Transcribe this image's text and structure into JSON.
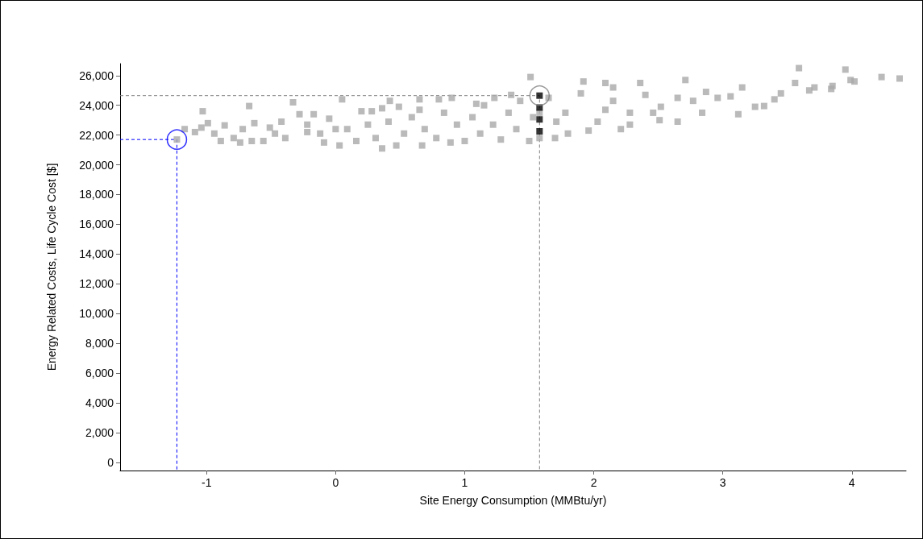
{
  "chart_data": {
    "type": "scatter",
    "xlabel": "Site Energy Consumption (MMBtu/yr)",
    "ylabel": "Energy Related Costs, Life Cycle Cost [$]",
    "xlim": [
      -1.67,
      4.42
    ],
    "ylim": [
      -550,
      26800
    ],
    "xticks": [
      -1,
      0,
      1,
      2,
      3,
      4
    ],
    "yticks": [
      0,
      {
        "value": 2000,
        "label": "2,000"
      },
      {
        "value": 4000,
        "label": "4,000"
      },
      {
        "value": 6000,
        "label": "6,000"
      },
      {
        "value": 8000,
        "label": "8,000"
      },
      {
        "value": 10000,
        "label": "10,000"
      },
      {
        "value": 12000,
        "label": "12,000"
      },
      {
        "value": 14000,
        "label": "14,000"
      },
      {
        "value": 16000,
        "label": "16,000"
      },
      {
        "value": 18000,
        "label": "18,000"
      },
      {
        "value": 20000,
        "label": "20,000"
      },
      {
        "value": 22000,
        "label": "22,000"
      },
      {
        "value": 24000,
        "label": "24,000"
      },
      {
        "value": 26000,
        "label": "26,000"
      }
    ],
    "grid": false,
    "series": [
      {
        "marker": "square",
        "color": "#a9a9a9",
        "x": [
          -1.23,
          -1.17,
          -1.03,
          -1.09,
          -0.99,
          -1.04,
          -0.89,
          -0.86,
          -0.79,
          -0.67,
          -0.74,
          -0.65,
          -0.63,
          -0.56,
          -0.51,
          -0.33,
          -0.42,
          -0.39,
          -0.28,
          -0.22,
          -0.17,
          0.05,
          -0.05,
          -0.09,
          0.2,
          0.28,
          0.36,
          0.42,
          0.49,
          0.65,
          0.8,
          0.9,
          0.36,
          0.47,
          0.67,
          0.89,
          1.23,
          1.36,
          0.09,
          0.16,
          0.25,
          0.31,
          0.41,
          0.53,
          0.59,
          0.69,
          0.78,
          0.84,
          0.94,
          1.0,
          1.06,
          1.12,
          1.15,
          1.22,
          1.28,
          1.34,
          1.4,
          1.43,
          1.5,
          1.53,
          -0.22,
          -0.12,
          0.0,
          0.03,
          -0.47,
          -0.72,
          -0.94,
          0.65,
          1.09,
          1.58,
          1.58,
          1.51,
          1.92,
          2.09,
          2.15,
          2.36,
          2.71,
          3.15,
          3.59,
          3.95,
          3.99,
          4.23,
          4.37,
          3.56,
          3.67,
          3.85,
          3.84,
          3.12,
          3.45,
          3.32,
          3.25,
          3.06,
          2.87,
          2.84,
          2.65,
          2.51,
          2.21,
          1.96,
          1.8,
          1.7,
          1.65,
          1.78,
          1.9,
          2.03,
          2.15,
          2.28,
          2.4,
          2.52,
          2.65,
          2.77,
          2.96,
          3.4,
          3.71,
          4.02,
          1.71,
          2.09,
          2.28,
          2.46
        ],
        "values": [
          21700,
          22400,
          23600,
          22200,
          22800,
          22500,
          21600,
          22650,
          21800,
          23950,
          21500,
          21600,
          22800,
          21600,
          22500,
          24200,
          22900,
          21800,
          23400,
          22200,
          23400,
          24400,
          23100,
          21500,
          23600,
          23600,
          23800,
          24300,
          23900,
          24400,
          24400,
          24500,
          21100,
          21300,
          21300,
          21500,
          24500,
          24700,
          22400,
          21600,
          22700,
          21800,
          22900,
          22100,
          23200,
          22400,
          21800,
          23500,
          22700,
          21600,
          23200,
          22100,
          24000,
          22700,
          21700,
          23500,
          22400,
          24300,
          21600,
          23200,
          22700,
          22100,
          22400,
          21300,
          22100,
          22400,
          22100,
          23700,
          24100,
          21800,
          23500,
          25900,
          25600,
          25500,
          25200,
          25500,
          25700,
          25200,
          26500,
          26400,
          25700,
          25900,
          25800,
          25500,
          25000,
          25300,
          25100,
          23400,
          24800,
          23950,
          23900,
          24600,
          24900,
          23500,
          22900,
          23000,
          22400,
          22300,
          22100,
          21800,
          24500,
          23500,
          24800,
          22900,
          24300,
          23500,
          24700,
          23900,
          24500,
          24300,
          24500,
          24400,
          25200,
          25600,
          22900,
          23700,
          22700,
          23500
        ]
      },
      {
        "type": "scatter",
        "marker": "square",
        "color": "#000000",
        "x": [
          1.58,
          1.58,
          1.58,
          1.58
        ],
        "values": [
          24650,
          23850,
          23050,
          22250
        ]
      },
      {
        "type": "line",
        "marker": "none",
        "line_style": "dashed",
        "color": "#0000ff",
        "x": [
          -1.67,
          -1.23,
          -1.23
        ],
        "values": [
          21700,
          21700,
          -550
        ]
      },
      {
        "type": "line",
        "marker": "none",
        "line_style": "dashed",
        "color": "#808080",
        "x": [
          -1.67,
          1.58,
          1.58
        ],
        "values": [
          24650,
          24650,
          -550
        ]
      },
      {
        "type": "scatter",
        "marker": "circle",
        "color": "#0000ff",
        "x": [
          -1.23
        ],
        "values": [
          21700
        ]
      },
      {
        "type": "scatter",
        "marker": "circle",
        "color": "#808080",
        "x": [
          1.58
        ],
        "values": [
          24650
        ]
      }
    ]
  }
}
